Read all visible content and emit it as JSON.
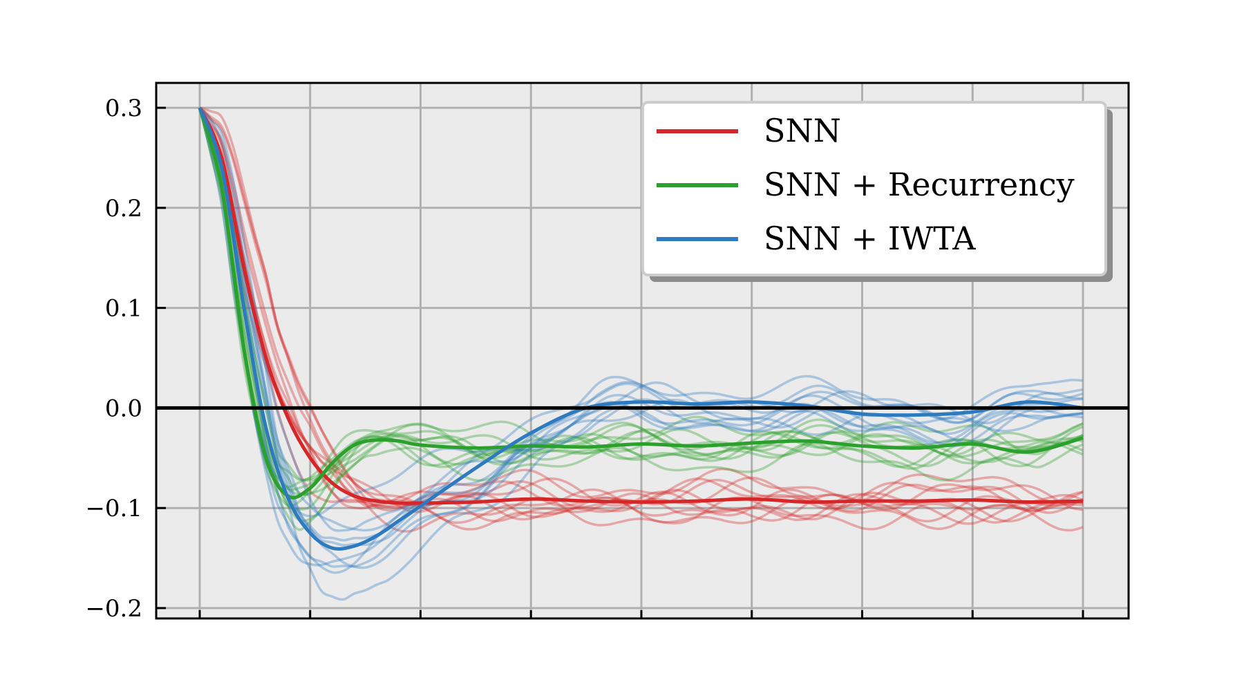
{
  "chart_data": {
    "type": "line",
    "title": "",
    "xlabel": "",
    "ylabel": "",
    "x_range": [
      0,
      8
    ],
    "x_ticks": [
      0,
      1,
      2,
      3,
      4,
      5,
      6,
      7,
      8
    ],
    "x_tick_labels_shown": false,
    "ylim": [
      -0.21,
      0.325
    ],
    "y_ticks": [
      0.3,
      0.2,
      0.1,
      0.0,
      -0.1,
      -0.2
    ],
    "y_tick_labels": [
      "0.3",
      "0.2",
      "0.1",
      "0.0",
      "−0.1",
      "−0.2"
    ],
    "grid": true,
    "zero_line": true,
    "legend_position": "top-right",
    "series": [
      {
        "name": "SNN",
        "color": "#d62728",
        "x": [
          0,
          0.2,
          0.4,
          0.6,
          0.8,
          1.0,
          1.2,
          1.4,
          1.6,
          1.8,
          2.0,
          2.5,
          3.0,
          3.5,
          4.0,
          4.5,
          5.0,
          5.5,
          6.0,
          6.5,
          7.0,
          7.5,
          8.0
        ],
        "values": [
          0.3,
          0.25,
          0.14,
          0.05,
          -0.01,
          -0.05,
          -0.075,
          -0.088,
          -0.093,
          -0.095,
          -0.095,
          -0.094,
          -0.091,
          -0.093,
          -0.094,
          -0.093,
          -0.091,
          -0.094,
          -0.093,
          -0.093,
          -0.092,
          -0.094,
          -0.093
        ]
      },
      {
        "name": "SNN + Recurrency",
        "color": "#2ca02c",
        "x": [
          0,
          0.2,
          0.4,
          0.6,
          0.8,
          1.0,
          1.2,
          1.4,
          1.6,
          1.8,
          2.0,
          2.5,
          3.0,
          3.5,
          4.0,
          4.5,
          5.0,
          5.5,
          6.0,
          6.5,
          7.0,
          7.5,
          8.0
        ],
        "values": [
          0.3,
          0.22,
          0.06,
          -0.05,
          -0.088,
          -0.08,
          -0.055,
          -0.037,
          -0.032,
          -0.033,
          -0.037,
          -0.04,
          -0.038,
          -0.039,
          -0.036,
          -0.038,
          -0.035,
          -0.033,
          -0.038,
          -0.04,
          -0.036,
          -0.044,
          -0.03
        ]
      },
      {
        "name": "SNN + IWTA",
        "color": "#2e7abf",
        "x": [
          0,
          0.2,
          0.4,
          0.6,
          0.8,
          1.0,
          1.2,
          1.4,
          1.6,
          1.8,
          2.0,
          2.5,
          3.0,
          3.5,
          4.0,
          4.5,
          5.0,
          5.5,
          6.0,
          6.5,
          7.0,
          7.5,
          8.0
        ],
        "values": [
          0.3,
          0.24,
          0.1,
          -0.02,
          -0.09,
          -0.125,
          -0.14,
          -0.138,
          -0.128,
          -0.113,
          -0.098,
          -0.06,
          -0.025,
          0.0,
          0.006,
          0.004,
          0.006,
          0.002,
          -0.006,
          -0.007,
          -0.004,
          0.006,
          0.0
        ]
      }
    ]
  }
}
